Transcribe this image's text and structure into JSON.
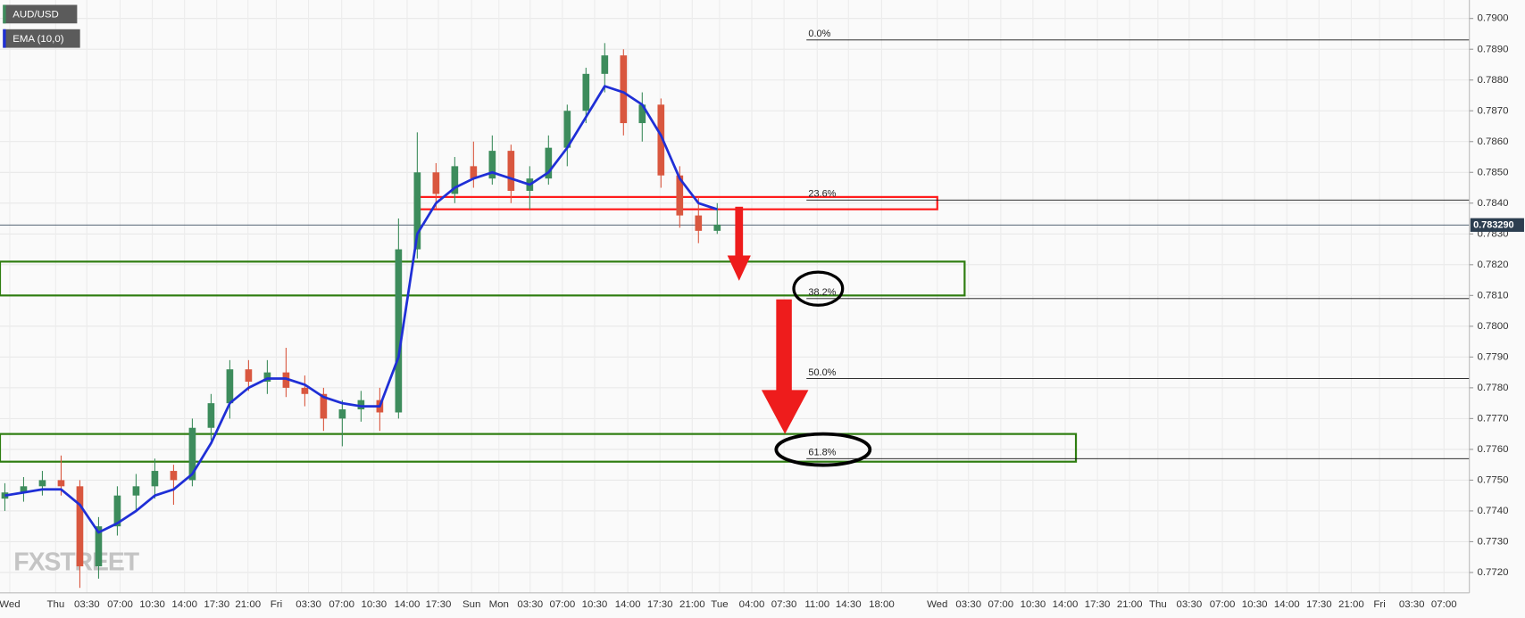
{
  "chart_data": {
    "type": "candlestick",
    "title": "AUD/USD",
    "watermark": "FXSTREET",
    "up_color": "#3d8c5c",
    "down_color": "#d9573f",
    "open": [
      0.7744,
      0.7746,
      0.7748,
      0.775,
      0.7748,
      0.7722,
      0.7735,
      0.7745,
      0.7748,
      0.7753,
      0.775,
      0.7767,
      0.7775,
      0.7786,
      0.7782,
      0.7785,
      0.778,
      0.7778,
      0.777,
      0.7773,
      0.7776,
      0.7772,
      0.7825,
      0.785,
      0.7843,
      0.7852,
      0.7848,
      0.7857,
      0.7844,
      0.7848,
      0.7858,
      0.787,
      0.7882,
      0.7888,
      0.7866,
      0.7872,
      0.7849,
      0.7836,
      0.7831
    ],
    "high": [
      0.7749,
      0.7751,
      0.7753,
      0.7758,
      0.775,
      0.7738,
      0.7748,
      0.7752,
      0.7757,
      0.7755,
      0.777,
      0.7778,
      0.7789,
      0.7789,
      0.7789,
      0.7793,
      0.7784,
      0.778,
      0.7776,
      0.7779,
      0.778,
      0.7835,
      0.7863,
      0.7853,
      0.7855,
      0.786,
      0.7862,
      0.7859,
      0.7852,
      0.7862,
      0.7872,
      0.7884,
      0.7892,
      0.789,
      0.7876,
      0.7874,
      0.7852,
      0.7842,
      0.784
    ],
    "low": [
      0.774,
      0.7743,
      0.7745,
      0.7745,
      0.7715,
      0.7718,
      0.7732,
      0.774,
      0.7744,
      0.7742,
      0.7748,
      0.7763,
      0.777,
      0.7779,
      0.7778,
      0.7777,
      0.7774,
      0.7766,
      0.7761,
      0.7769,
      0.7766,
      0.777,
      0.7822,
      0.7838,
      0.784,
      0.7845,
      0.7846,
      0.784,
      0.7838,
      0.7846,
      0.7852,
      0.7866,
      0.7876,
      0.7862,
      0.786,
      0.7845,
      0.7832,
      0.7827,
      0.783
    ],
    "close": [
      0.7746,
      0.7748,
      0.775,
      0.7748,
      0.7722,
      0.7735,
      0.7745,
      0.7748,
      0.7753,
      0.775,
      0.7767,
      0.7775,
      0.7786,
      0.7782,
      0.7785,
      0.778,
      0.7778,
      0.777,
      0.7773,
      0.7776,
      0.7772,
      0.7825,
      0.785,
      0.7843,
      0.7852,
      0.7848,
      0.7857,
      0.7844,
      0.7848,
      0.7858,
      0.787,
      0.7882,
      0.7888,
      0.7866,
      0.7872,
      0.7849,
      0.7836,
      0.7831,
      0.7833
    ],
    "ema": {
      "name": "EMA (10,0)",
      "color": "#1f2fd6",
      "values": [
        0.7745,
        0.7746,
        0.7747,
        0.7747,
        0.7742,
        0.7733,
        0.7736,
        0.774,
        0.7745,
        0.7747,
        0.7752,
        0.7762,
        0.7775,
        0.778,
        0.7783,
        0.7783,
        0.7781,
        0.7777,
        0.7775,
        0.7774,
        0.7774,
        0.779,
        0.783,
        0.784,
        0.7845,
        0.7848,
        0.785,
        0.7848,
        0.7846,
        0.785,
        0.7858,
        0.7868,
        0.7878,
        0.7876,
        0.7872,
        0.7862,
        0.7848,
        0.784,
        0.7838
      ]
    },
    "x_labels": [
      "Wed",
      "Thu",
      "03:30",
      "07:00",
      "10:30",
      "14:00",
      "17:30",
      "21:00",
      "Fri",
      "03:30",
      "07:00",
      "10:30",
      "14:00",
      "17:30",
      "Sun",
      "Mon",
      "03:30",
      "07:00",
      "10:30",
      "14:00",
      "17:30",
      "21:00",
      "Tue",
      "04:00",
      "07:30",
      "11:00",
      "14:30",
      "18:00",
      "Wed",
      "03:30",
      "07:00",
      "10:30",
      "14:00",
      "17:30",
      "21:00",
      "Thu",
      "03:30",
      "07:00",
      "10:30",
      "14:00",
      "17:30",
      "21:00",
      "Fri",
      "03:30",
      "07:00"
    ],
    "ylim": [
      0.7714,
      0.7906
    ],
    "yticks": [
      {
        "value": 0.772,
        "label": "0.7720"
      },
      {
        "value": 0.773,
        "label": "0.7730"
      },
      {
        "value": 0.774,
        "label": "0.7740"
      },
      {
        "value": 0.775,
        "label": "0.7750"
      },
      {
        "value": 0.776,
        "label": "0.7760"
      },
      {
        "value": 0.777,
        "label": "0.7770"
      },
      {
        "value": 0.778,
        "label": "0.7780"
      },
      {
        "value": 0.779,
        "label": "0.7790"
      },
      {
        "value": 0.78,
        "label": "0.7800"
      },
      {
        "value": 0.781,
        "label": "0.7810"
      },
      {
        "value": 0.782,
        "label": "0.7820"
      },
      {
        "value": 0.783,
        "label": "0.7830"
      },
      {
        "value": 0.784,
        "label": "0.7840"
      },
      {
        "value": 0.785,
        "label": "0.7850"
      },
      {
        "value": 0.786,
        "label": "0.7860"
      },
      {
        "value": 0.787,
        "label": "0.7870"
      },
      {
        "value": 0.788,
        "label": "0.7880"
      },
      {
        "value": 0.789,
        "label": "0.7890"
      },
      {
        "value": 0.79,
        "label": "0.7900"
      }
    ],
    "grid": true,
    "last_price": {
      "value": 0.78329,
      "label": "0.783290"
    },
    "fib": [
      {
        "label": "0.0%",
        "value": 0.7893
      },
      {
        "label": "23.6%",
        "value": 0.7841
      },
      {
        "label": "38.2%",
        "value": 0.7809
      },
      {
        "label": "50.0%",
        "value": 0.7783
      },
      {
        "label": "61.8%",
        "value": 0.7757
      }
    ],
    "zones": [
      {
        "ylim": [
          0.7838,
          0.7842
        ],
        "color": "#ff1a1a"
      },
      {
        "ylim": [
          0.781,
          0.7821
        ],
        "color": "#2e7d10"
      },
      {
        "ylim": [
          0.7756,
          0.7765
        ],
        "color": "#2e7d10"
      }
    ]
  }
}
